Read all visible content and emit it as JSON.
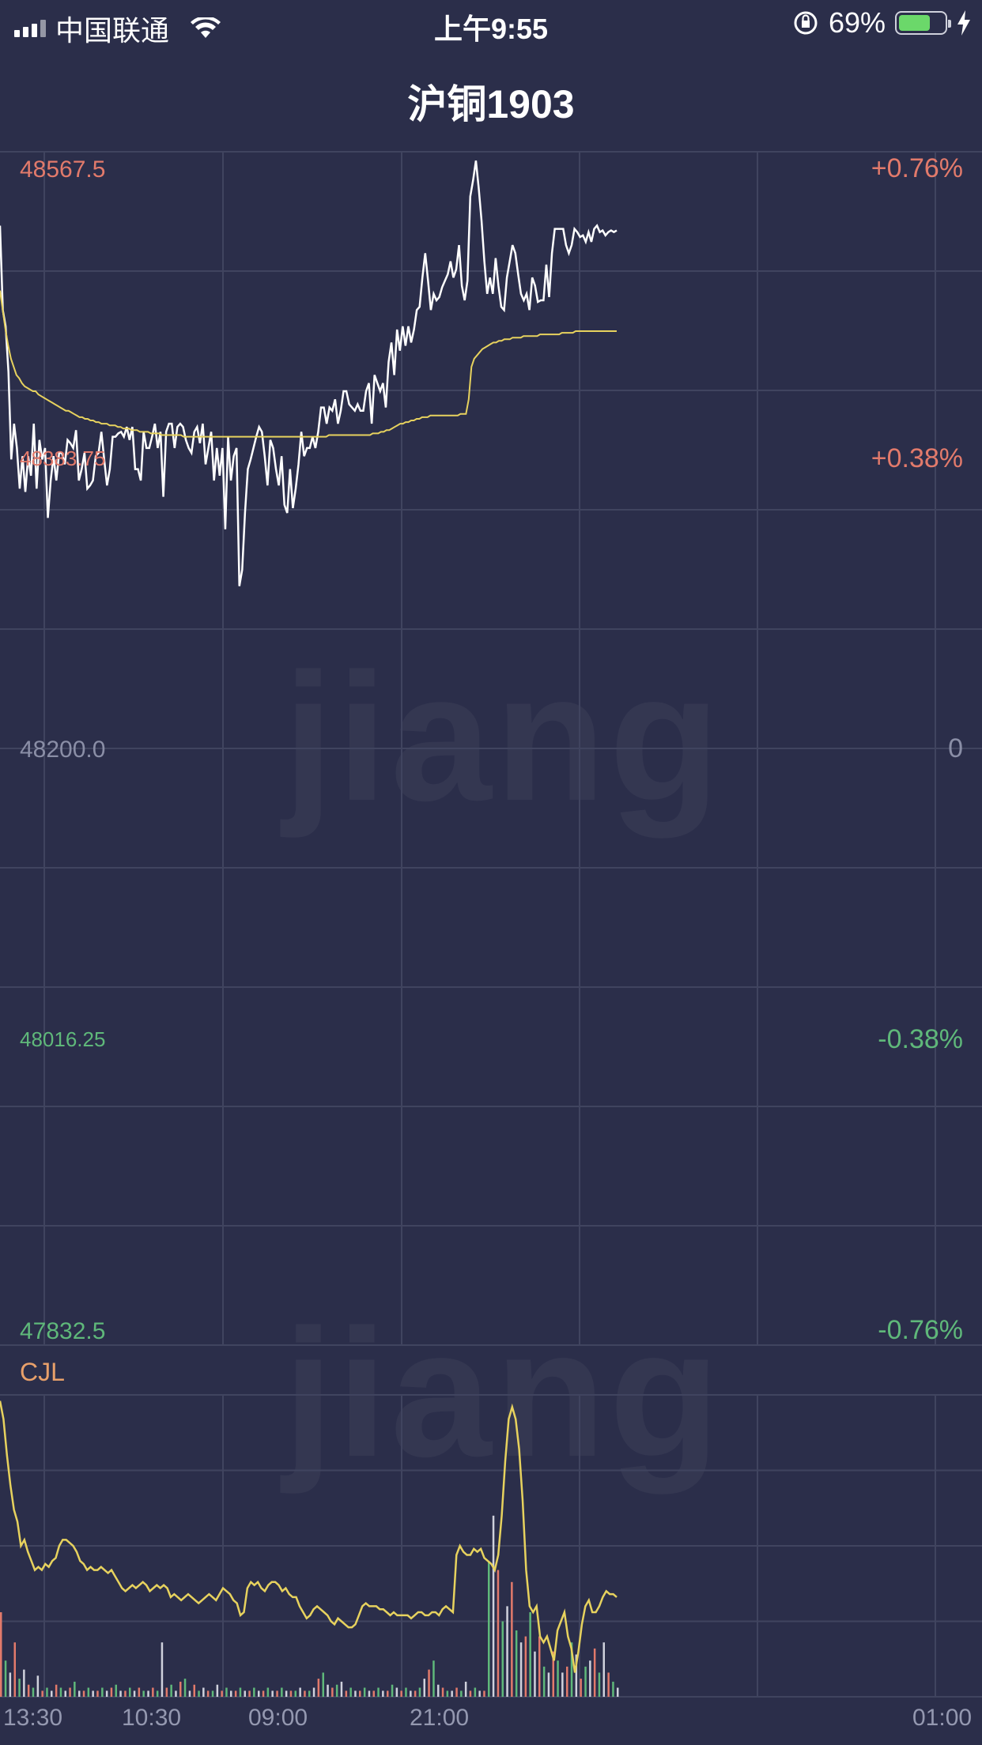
{
  "status_bar": {
    "carrier": "中国联通",
    "time": "上午9:55",
    "battery_percent": "69%",
    "battery_level": 0.69
  },
  "header": {
    "title": "沪铜1903"
  },
  "watermark": "jiang",
  "chart_data": [
    {
      "type": "line",
      "name": "price",
      "y_labels": [
        "48567.5",
        "48383.75",
        "48200.0",
        "48016.25",
        "47832.5"
      ],
      "pct_labels": [
        "+0.76%",
        "+0.38%",
        "0",
        "-0.38%",
        "-0.76%"
      ],
      "ylim": [
        47832.5,
        48567.5
      ],
      "colors": {
        "price_line": "#ffffff",
        "avg_line": "#e7d25e",
        "up": "#e27a6b",
        "down": "#5fb87a",
        "neutral": "#8a8ea6"
      },
      "series": [
        {
          "values": [
            48522,
            48470,
            48460,
            48432,
            48378,
            48400,
            48385,
            48360,
            48380,
            48358,
            48380,
            48368,
            48400,
            48360,
            48390,
            48378,
            48385,
            48342,
            48365,
            48380,
            48365,
            48382,
            48382,
            48375,
            48390,
            48388,
            48385,
            48396,
            48365,
            48372,
            48382,
            48360,
            48362,
            48365,
            48380,
            48382,
            48395,
            48378,
            48362,
            48372,
            48392,
            48392,
            48394,
            48395,
            48392,
            48398,
            48390,
            48398,
            48372,
            48372,
            48365,
            48395,
            48385,
            48385,
            48392,
            48400,
            48385,
            48395,
            48355,
            48395,
            48400,
            48400,
            48385,
            48398,
            48400,
            48398,
            48390,
            48385,
            48382,
            48395,
            48398,
            48388,
            48400,
            48375,
            48385,
            48395,
            48365,
            48385,
            48368,
            48385,
            48335,
            48392,
            48365,
            48380,
            48385,
            48300,
            48310,
            48345,
            48372,
            48378,
            48385,
            48392,
            48398,
            48395,
            48380,
            48362,
            48390,
            48385,
            48372,
            48362,
            48380,
            48350,
            48345,
            48372,
            48348,
            48360,
            48375,
            48395,
            48380,
            48385,
            48385,
            48392,
            48385,
            48395,
            48410,
            48410,
            48400,
            48410,
            48408,
            48415,
            48400,
            48408,
            48420,
            48420,
            48412,
            48410,
            48408,
            48412,
            48408,
            48408,
            48420,
            48425,
            48400,
            48430,
            48425,
            48420,
            48425,
            48410,
            48438,
            48450,
            48430,
            48458,
            48445,
            48460,
            48448,
            48460,
            48450,
            48458,
            48470,
            48472,
            48490,
            48505,
            48488,
            48470,
            48480,
            48476,
            48478,
            48484,
            48488,
            48492,
            48500,
            48490,
            48495,
            48510,
            48485,
            48476,
            48488,
            48540,
            48550,
            48562,
            48545,
            48525,
            48500,
            48480,
            48490,
            48480,
            48502,
            48485,
            48472,
            48470,
            48490,
            48500,
            48510,
            48505,
            48492,
            48480,
            48476,
            48480,
            48470,
            48490,
            48485,
            48475,
            48476,
            48476,
            48498,
            48478,
            48505,
            48520,
            48520,
            48520,
            48520,
            48510,
            48505,
            48510,
            48520,
            48518,
            48515,
            48516,
            48512,
            48518,
            48512,
            48520,
            48522,
            48518,
            48519,
            48516,
            48518,
            48519,
            48518,
            48519
          ]
        },
        {
          "values": [
            48482,
            48470,
            48458,
            48448,
            48440,
            48435,
            48430,
            48428,
            48425,
            48423,
            48422,
            48421,
            48420,
            48420,
            48418,
            48417,
            48416,
            48415,
            48414,
            48413,
            48412,
            48411,
            48410,
            48409,
            48408,
            48408,
            48407,
            48406,
            48405,
            48404,
            48404,
            48403,
            48403,
            48402,
            48402,
            48401,
            48401,
            48400,
            48400,
            48400,
            48399,
            48399,
            48399,
            48398,
            48398,
            48397,
            48397,
            48397,
            48396,
            48396,
            48396,
            48395,
            48395,
            48395,
            48395,
            48394,
            48394,
            48394,
            48394,
            48393,
            48393,
            48393,
            48393,
            48393,
            48393,
            48393,
            48393,
            48392,
            48392,
            48392,
            48392,
            48392,
            48392,
            48392,
            48392,
            48392,
            48392,
            48392,
            48392,
            48392,
            48392,
            48392,
            48392,
            48392,
            48392,
            48392,
            48392,
            48392,
            48392,
            48392,
            48392,
            48392,
            48392,
            48392,
            48392,
            48392,
            48392,
            48392,
            48392,
            48392,
            48392,
            48392,
            48392,
            48392,
            48392,
            48392,
            48392,
            48392,
            48392,
            48392,
            48392,
            48392,
            48392,
            48392,
            48392,
            48392,
            48392,
            48392,
            48392,
            48392,
            48393,
            48393,
            48393,
            48393,
            48393,
            48393,
            48393,
            48393,
            48393,
            48393,
            48393,
            48393,
            48393,
            48393,
            48393,
            48393,
            48394,
            48394,
            48394,
            48395,
            48395,
            48396,
            48396,
            48397,
            48398,
            48399,
            48400,
            48400,
            48401,
            48401,
            48402,
            48402,
            48403,
            48403,
            48404,
            48404,
            48404,
            48405,
            48405,
            48405,
            48405,
            48405,
            48405,
            48405,
            48405,
            48405,
            48405,
            48405,
            48406,
            48406,
            48406,
            48415,
            48435,
            48440,
            48442,
            48444,
            48446,
            48447,
            48448,
            48449,
            48450,
            48450,
            48451,
            48451,
            48452,
            48452,
            48452,
            48453,
            48453,
            48453,
            48453,
            48454,
            48454,
            48454,
            48454,
            48454,
            48454,
            48455,
            48455,
            48455,
            48455,
            48455,
            48455,
            48455,
            48455,
            48456,
            48456,
            48456,
            48456,
            48456,
            48457,
            48457,
            48457,
            48457,
            48457,
            48457,
            48457,
            48457,
            48457,
            48457,
            48457,
            48457,
            48457,
            48457,
            48457,
            48457
          ]
        }
      ]
    },
    {
      "type": "bar",
      "name": "volume",
      "title": "CJL",
      "x_tick_labels": [
        "13:30",
        "10:30",
        "09:00",
        "21:00",
        "01:00"
      ],
      "ma_line": [
        98,
        92,
        80,
        70,
        62,
        58,
        50,
        52,
        48,
        45,
        42,
        43,
        42,
        44,
        43,
        45,
        46,
        50,
        52,
        52,
        51,
        50,
        48,
        45,
        44,
        42,
        43,
        42,
        42,
        43,
        42,
        41,
        42,
        40,
        38,
        36,
        35,
        36,
        37,
        36,
        37,
        38,
        37,
        35,
        36,
        37,
        36,
        37,
        36,
        33,
        34,
        33,
        32,
        33,
        34,
        33,
        32,
        31,
        32,
        33,
        34,
        33,
        32,
        34,
        36,
        35,
        34,
        32,
        31,
        27,
        28,
        36,
        38,
        37,
        38,
        36,
        35,
        37,
        38,
        38,
        37,
        35,
        36,
        34,
        33,
        33,
        30,
        28,
        26,
        27,
        29,
        30,
        29,
        28,
        27,
        25,
        24,
        26,
        25,
        24,
        23,
        23,
        24,
        27,
        30,
        31,
        30,
        30,
        30,
        29,
        29,
        28,
        27,
        28,
        27,
        27,
        27,
        27,
        26,
        27,
        28,
        28,
        27,
        27,
        28,
        28,
        27,
        29,
        30,
        29,
        28,
        47,
        50,
        48,
        47,
        47,
        49,
        48,
        49,
        46,
        45,
        44,
        42,
        47,
        60,
        78,
        92,
        96,
        92,
        82,
        65,
        42,
        30,
        28,
        30,
        20,
        18,
        20,
        16,
        12,
        22,
        25,
        28,
        20,
        16,
        8,
        15,
        24,
        30,
        32,
        28,
        28,
        30,
        33,
        35,
        34,
        34,
        33
      ],
      "bars": [
        28,
        12,
        8,
        18,
        6,
        9,
        4,
        3,
        7,
        2,
        3,
        2,
        4,
        3,
        2,
        3,
        5,
        2,
        2,
        3,
        2,
        2,
        3,
        2,
        3,
        4,
        2,
        2,
        3,
        2,
        3,
        2,
        2,
        3,
        2,
        18,
        3,
        4,
        2,
        5,
        6,
        2,
        4,
        2,
        3,
        2,
        2,
        4,
        2,
        3,
        2,
        2,
        3,
        2,
        2,
        3,
        2,
        2,
        3,
        2,
        2,
        3,
        2,
        2,
        2,
        3,
        2,
        2,
        3,
        6,
        8,
        4,
        3,
        4,
        5,
        2,
        3,
        2,
        2,
        3,
        2,
        2,
        3,
        2,
        2,
        4,
        3,
        2,
        3,
        2,
        2,
        3,
        6,
        9,
        12,
        4,
        3,
        2,
        2,
        3,
        2,
        5,
        2,
        3,
        2,
        2,
        45,
        60,
        42,
        25,
        30,
        38,
        22,
        18,
        20,
        28,
        15,
        20,
        10,
        8,
        15,
        12,
        8,
        10,
        18,
        14,
        6,
        10,
        12,
        16,
        8,
        18,
        8,
        5,
        3
      ]
    }
  ]
}
